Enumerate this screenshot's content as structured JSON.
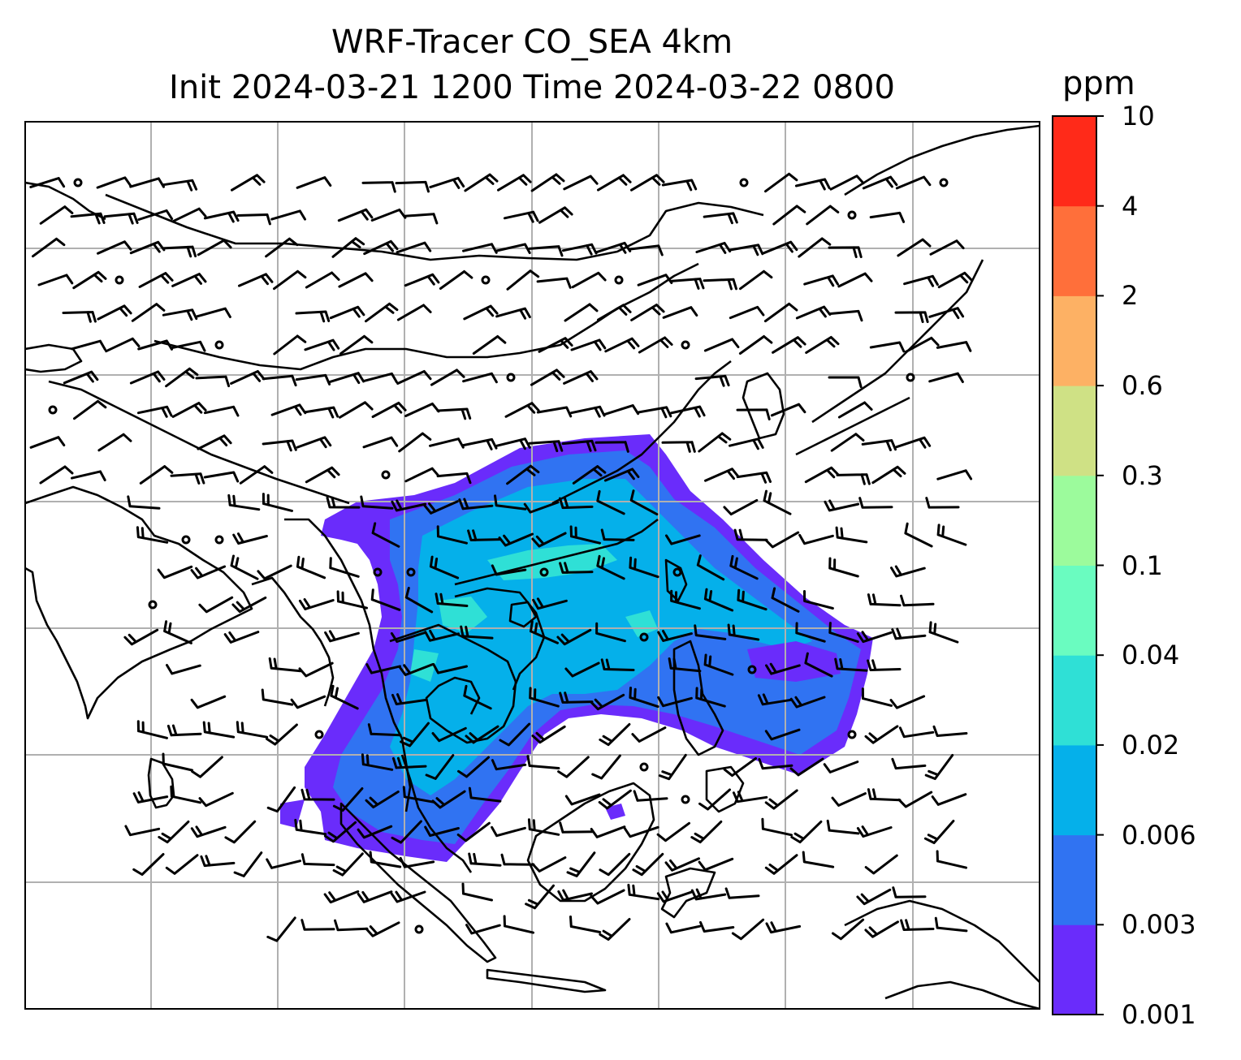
{
  "title": {
    "line1": "WRF-Tracer CO_SEA 4km",
    "line2": "Init 2024-03-21 1200 Time 2024-03-22 0800"
  },
  "map": {
    "gridlines": true,
    "features": [
      "coastlines",
      "wind-barbs",
      "co-tracer-concentration"
    ]
  },
  "colorbar": {
    "unit": "ppm",
    "ticks": [
      "0.001",
      "0.003",
      "0.006",
      "0.02",
      "0.04",
      "0.1",
      "0.3",
      "0.6",
      "2",
      "4",
      "10"
    ],
    "colors": [
      "#6a2cfb",
      "#3073f2",
      "#05b0ea",
      "#2fe0d6",
      "#6afcc0",
      "#9cfb9c",
      "#cfe185",
      "#fdb164",
      "#ff6f3a",
      "#ff2a19"
    ]
  }
}
